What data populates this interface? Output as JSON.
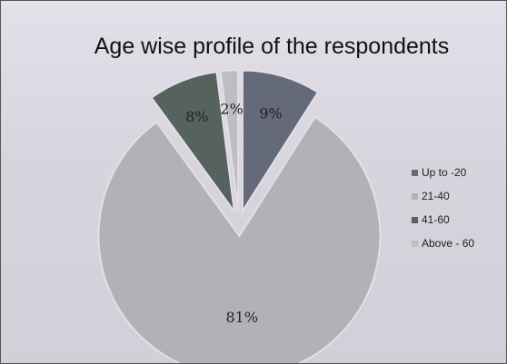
{
  "chart_data": {
    "type": "pie",
    "title": "Age wise profile of the respondents",
    "categories": [
      "Up to -20",
      "21-40",
      "41-60",
      "Above - 60"
    ],
    "values": [
      9,
      81,
      8,
      2
    ],
    "labels": [
      "9%",
      "81%",
      "8%",
      "2%"
    ],
    "colors": [
      "#646a7a",
      "#b4b0b8",
      "#56625e",
      "#c0bcc4"
    ],
    "exploded": true,
    "legend_position": "right"
  }
}
